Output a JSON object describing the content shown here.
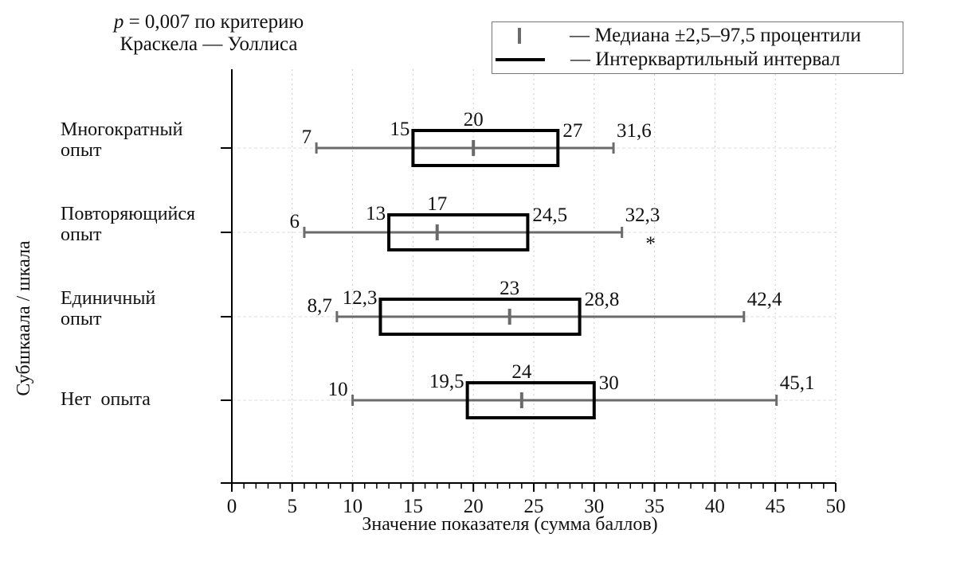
{
  "annotation": {
    "p_symbol": "p",
    "line1_rest": " = 0,007 по критерию",
    "line2": "Краскела — Уоллиса"
  },
  "legend": {
    "median_label": "— Медиана ±2,5–97,5 процентили",
    "iqr_label": "— Интерквартильный интервал"
  },
  "chart_data": {
    "type": "boxplot-horizontal",
    "xlabel": "Значение показателя (сумма баллов)",
    "ylabel": "Субшкаала / шкала",
    "xlim": [
      0,
      50
    ],
    "x_ticks": [
      "0",
      "5",
      "10",
      "15",
      "20",
      "25",
      "30",
      "35",
      "40",
      "45",
      "50"
    ],
    "grid": true,
    "legend_position": "top-right",
    "colors": {
      "whisker": "#6b6b6b",
      "box": "#000000",
      "grid": "#cccccc"
    },
    "categories": [
      {
        "name": "Многократный опыт",
        "label_lines": [
          "Многократный",
          "опыт"
        ],
        "p2_5": 7,
        "q1": 15,
        "median": 20,
        "q3": 27,
        "p97_5": 31.6,
        "labels": {
          "p2_5": "7",
          "q1": "15",
          "median": "20",
          "q3": "27",
          "p97_5": "31,6"
        },
        "marker": ""
      },
      {
        "name": "Повторяющийся опыт",
        "label_lines": [
          "Повторяющийся",
          "опыт"
        ],
        "p2_5": 6,
        "q1": 13,
        "median": 17,
        "q3": 24.5,
        "p97_5": 32.3,
        "labels": {
          "p2_5": "6",
          "q1": "13",
          "median": "17",
          "q3": "24,5",
          "p97_5": "32,3"
        },
        "marker": "*"
      },
      {
        "name": "Единичный опыт",
        "label_lines": [
          "Единичный",
          "опыт"
        ],
        "p2_5": 8.7,
        "q1": 12.3,
        "median": 23,
        "q3": 28.8,
        "p97_5": 42.4,
        "labels": {
          "p2_5": "8,7",
          "q1": "12,3",
          "median": "23",
          "q3": "28,8",
          "p97_5": "42,4"
        },
        "marker": ""
      },
      {
        "name": "Нет опыта",
        "label_lines": [
          "Нет  опыта"
        ],
        "p2_5": 10,
        "q1": 19.5,
        "median": 24,
        "q3": 30,
        "p97_5": 45.1,
        "labels": {
          "p2_5": "10",
          "q1": "19,5",
          "median": "24",
          "q3": "30",
          "p97_5": "45,1"
        },
        "marker": ""
      }
    ]
  }
}
